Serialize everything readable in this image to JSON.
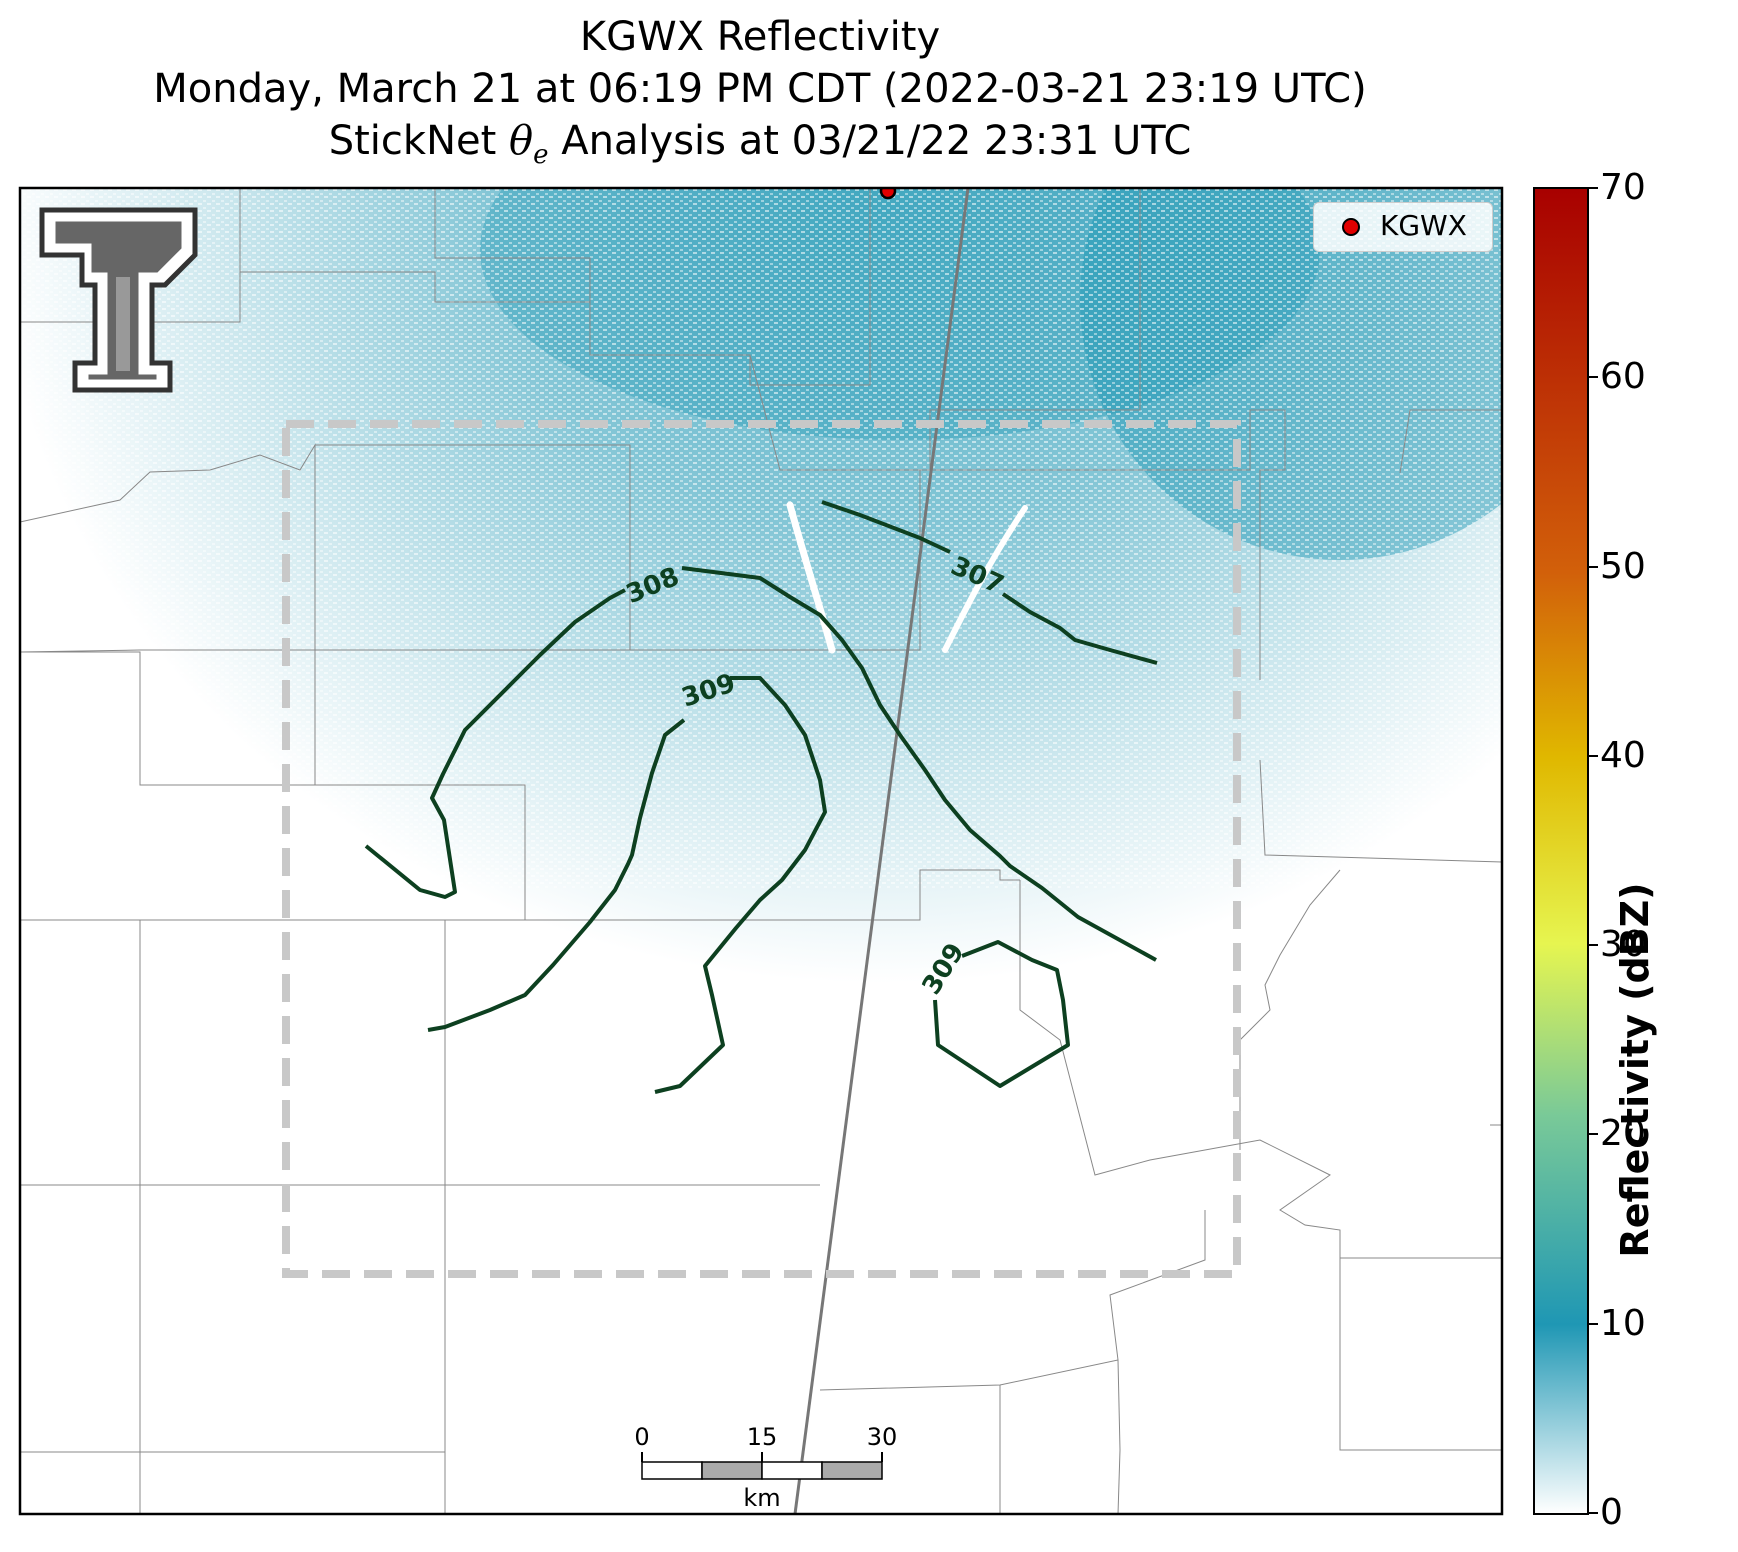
{
  "title": {
    "line1": "KGWX Reflectivity",
    "line2": "Monday, March 21 at 06:19 PM CDT (2022-03-21 23:19 UTC)",
    "line3_prefix": "StickNet ",
    "line3_symbol": "θ",
    "line3_sub": "e",
    "line3_suffix": " Analysis at 03/21/22 23:31 UTC"
  },
  "legend": {
    "label": "KGWX",
    "marker_color": "#e00000"
  },
  "colorbar": {
    "label": "Reflectivity (dBZ)",
    "ticks": [
      "0",
      "10",
      "20",
      "30",
      "40",
      "50",
      "60",
      "70"
    ],
    "range": [
      0,
      70
    ],
    "colors": [
      "#ffffff",
      "#1f97b4",
      "#79c998",
      "#e6f550",
      "#e0b800",
      "#d2600a",
      "#a80000"
    ]
  },
  "contours": [
    {
      "label": "308",
      "value": 308
    },
    {
      "label": "307",
      "value": 307
    },
    {
      "label": "309",
      "value": 309
    },
    {
      "label": "309",
      "value": 309
    }
  ],
  "scalebar": {
    "ticks": [
      "0",
      "15",
      "30"
    ],
    "unit": "km"
  },
  "radar_site": "KGWX",
  "logo": "texas-tech-double-t"
}
